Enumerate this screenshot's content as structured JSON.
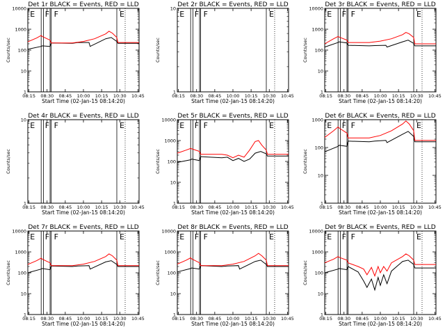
{
  "figure": {
    "background": "#ffffff",
    "axis_color": "#000000"
  },
  "chart_data": [
    {
      "type": "line",
      "title": "Det 1r  BLACK = Events, RED = LLD",
      "xlabel": "Start Time (02-Jan-15 08:14:20)",
      "ylabel": "Counts/sec",
      "x_ticks": [
        "08:15",
        "08:30",
        "08:45",
        "10:00",
        "10:15",
        "10:30",
        "10:45"
      ],
      "y_ticks": [
        "1",
        "10",
        "100",
        "1000",
        "10000"
      ],
      "ylim": [
        1,
        10000
      ],
      "log_y": true,
      "flags": [
        "E",
        "F",
        "F",
        "E"
      ],
      "series": [
        {
          "color": "#000000",
          "x": [
            0,
            0.12,
            0.13,
            0.2,
            0.21,
            0.4,
            0.45,
            0.55,
            0.56,
            0.7,
            0.75,
            0.8,
            0.81,
            1
          ],
          "y": [
            110,
            150,
            160,
            150,
            220,
            210,
            230,
            230,
            150,
            350,
            400,
            260,
            210,
            210
          ]
        },
        {
          "color": "#ff0000",
          "x": [
            0,
            0.08,
            0.12,
            0.13,
            0.2,
            0.21,
            0.4,
            0.5,
            0.6,
            0.7,
            0.73,
            0.76,
            0.8,
            0.81,
            1
          ],
          "y": [
            250,
            380,
            500,
            450,
            300,
            220,
            220,
            260,
            350,
            600,
            800,
            650,
            400,
            230,
            230
          ]
        }
      ]
    },
    {
      "type": "line",
      "title": "Det 2r  BLACK = Events, RED = LLD",
      "xlabel": "Start Time (02-Jan-15 08:14:20)",
      "ylabel": "Counts/sec",
      "x_ticks": [
        "08:15",
        "08:30",
        "08:45",
        "10:00",
        "10:15",
        "10:30",
        "10:45"
      ],
      "y_ticks": [
        "1",
        "10"
      ],
      "ylim": [
        1,
        10
      ],
      "log_y": true,
      "flags": [
        "E",
        "F",
        "F",
        "E"
      ],
      "series": []
    },
    {
      "type": "line",
      "title": "Det 3r  BLACK = Events, RED = LLD",
      "xlabel": "Start Time (02-Jan-15 08:14:20)",
      "ylabel": "Counts/sec",
      "x_ticks": [
        "08:15",
        "08:30",
        "08:45",
        "10:00",
        "10:15",
        "10:30",
        "10:45"
      ],
      "y_ticks": [
        "1",
        "10",
        "100",
        "1000",
        "10000"
      ],
      "ylim": [
        1,
        10000
      ],
      "log_y": true,
      "flags": [
        "E",
        "F",
        "F",
        "E"
      ],
      "series": [
        {
          "color": "#000000",
          "x": [
            0,
            0.12,
            0.13,
            0.2,
            0.21,
            0.4,
            0.45,
            0.55,
            0.56,
            0.7,
            0.75,
            0.8,
            0.81,
            1
          ],
          "y": [
            140,
            230,
            250,
            220,
            170,
            160,
            165,
            170,
            140,
            250,
            300,
            210,
            160,
            160
          ]
        },
        {
          "color": "#ff0000",
          "x": [
            0,
            0.08,
            0.12,
            0.13,
            0.2,
            0.21,
            0.4,
            0.5,
            0.6,
            0.7,
            0.73,
            0.76,
            0.8,
            0.81,
            1
          ],
          "y": [
            200,
            350,
            450,
            420,
            300,
            230,
            230,
            270,
            350,
            550,
            700,
            600,
            400,
            200,
            200
          ]
        }
      ]
    },
    {
      "type": "line",
      "title": "Det 4r  BLACK = Events, RED = LLD",
      "xlabel": "Start Time (02-Jan-15 08:14:20)",
      "ylabel": "Counts/sec",
      "x_ticks": [
        "08:15",
        "08:30",
        "08:45",
        "10:00",
        "10:15",
        "10:30",
        "10:45"
      ],
      "y_ticks": [
        "1",
        "10"
      ],
      "ylim": [
        1,
        10
      ],
      "log_y": true,
      "flags": [
        "E",
        "F",
        "F",
        "E"
      ],
      "series": []
    },
    {
      "type": "line",
      "title": "Det 5r  BLACK = Events, RED = LLD",
      "xlabel": "Start Time (02-Jan-15 08:14:20)",
      "ylabel": "Counts/sec",
      "x_ticks": [
        "08:15",
        "08:30",
        "08:45",
        "10:00",
        "10:15",
        "10:30",
        "10:45"
      ],
      "y_ticks": [
        "1",
        "10",
        "100",
        "1000",
        "10000"
      ],
      "ylim": [
        1,
        10000
      ],
      "log_y": true,
      "flags": [
        "E",
        "F",
        "F",
        "E"
      ],
      "series": [
        {
          "color": "#000000",
          "x": [
            0,
            0.12,
            0.13,
            0.2,
            0.21,
            0.4,
            0.45,
            0.5,
            0.55,
            0.6,
            0.65,
            0.7,
            0.75,
            0.8,
            0.81,
            1
          ],
          "y": [
            90,
            120,
            130,
            110,
            170,
            150,
            160,
            110,
            140,
            100,
            130,
            250,
            300,
            230,
            180,
            180
          ]
        },
        {
          "color": "#ff0000",
          "x": [
            0,
            0.08,
            0.12,
            0.13,
            0.2,
            0.21,
            0.4,
            0.45,
            0.5,
            0.55,
            0.6,
            0.65,
            0.7,
            0.73,
            0.76,
            0.8,
            0.81,
            1
          ],
          "y": [
            250,
            350,
            420,
            400,
            300,
            220,
            220,
            200,
            150,
            200,
            160,
            350,
            900,
            1000,
            600,
            350,
            220,
            220
          ]
        }
      ]
    },
    {
      "type": "line",
      "title": "Det 6r  BLACK = Events, RED = LLD",
      "xlabel": "Start Time (02-Jan-15 08:14:20)",
      "ylabel": "Counts/sec",
      "x_ticks": [
        "08:15",
        "08:30",
        "08:45",
        "10:00",
        "10:15",
        "10:30",
        "10:45"
      ],
      "y_ticks": [
        "1",
        "10",
        "100",
        "1000"
      ],
      "ylim": [
        1,
        1000
      ],
      "log_y": true,
      "flags": [
        "E",
        "F",
        "F",
        "E"
      ],
      "series": [
        {
          "color": "#000000",
          "x": [
            0,
            0.12,
            0.13,
            0.2,
            0.21,
            0.4,
            0.45,
            0.55,
            0.56,
            0.7,
            0.75,
            0.8,
            0.81,
            1
          ],
          "y": [
            70,
            110,
            120,
            110,
            170,
            160,
            170,
            180,
            150,
            300,
            380,
            250,
            160,
            160
          ]
        },
        {
          "color": "#ff0000",
          "x": [
            0,
            0.08,
            0.12,
            0.13,
            0.2,
            0.21,
            0.4,
            0.5,
            0.6,
            0.7,
            0.73,
            0.76,
            0.8,
            0.81,
            1
          ],
          "y": [
            230,
            400,
            550,
            500,
            330,
            220,
            220,
            270,
            400,
            700,
            900,
            700,
            400,
            180,
            180
          ]
        }
      ]
    },
    {
      "type": "line",
      "title": "Det 7r  BLACK = Events, RED = LLD",
      "xlabel": "Start Time (02-Jan-15 08:14:20)",
      "ylabel": "Counts/sec",
      "x_ticks": [
        "08:15",
        "08:30",
        "08:45",
        "10:00",
        "10:15",
        "10:30",
        "10:45"
      ],
      "y_ticks": [
        "1",
        "10",
        "100",
        "1000",
        "10000"
      ],
      "ylim": [
        1,
        10000
      ],
      "log_y": true,
      "flags": [
        "E",
        "F",
        "F",
        "E"
      ],
      "series": [
        {
          "color": "#000000",
          "x": [
            0,
            0.12,
            0.13,
            0.2,
            0.21,
            0.4,
            0.45,
            0.55,
            0.56,
            0.7,
            0.75,
            0.8,
            0.81,
            1
          ],
          "y": [
            100,
            150,
            160,
            140,
            210,
            200,
            210,
            220,
            150,
            330,
            380,
            250,
            200,
            200
          ]
        },
        {
          "color": "#ff0000",
          "x": [
            0,
            0.08,
            0.12,
            0.13,
            0.2,
            0.21,
            0.4,
            0.5,
            0.6,
            0.7,
            0.73,
            0.76,
            0.8,
            0.81,
            1
          ],
          "y": [
            250,
            380,
            500,
            450,
            300,
            220,
            220,
            260,
            350,
            600,
            800,
            650,
            400,
            220,
            220
          ]
        }
      ]
    },
    {
      "type": "line",
      "title": "Det 8r  BLACK = Events, RED = LLD",
      "xlabel": "Start Time (02-Jan-15 08:14:20)",
      "ylabel": "Counts/sec",
      "x_ticks": [
        "08:15",
        "08:30",
        "08:45",
        "10:00",
        "10:15",
        "10:30",
        "10:45"
      ],
      "y_ticks": [
        "1",
        "10",
        "100",
        "1000",
        "10000"
      ],
      "ylim": [
        1,
        10000
      ],
      "log_y": true,
      "flags": [
        "E",
        "F",
        "F",
        "E"
      ],
      "series": [
        {
          "color": "#000000",
          "x": [
            0,
            0.12,
            0.13,
            0.2,
            0.21,
            0.4,
            0.45,
            0.55,
            0.56,
            0.7,
            0.75,
            0.8,
            0.81,
            1
          ],
          "y": [
            110,
            160,
            170,
            150,
            220,
            200,
            210,
            220,
            150,
            350,
            400,
            250,
            200,
            200
          ]
        },
        {
          "color": "#ff0000",
          "x": [
            0,
            0.08,
            0.12,
            0.13,
            0.2,
            0.21,
            0.4,
            0.5,
            0.6,
            0.7,
            0.73,
            0.76,
            0.8,
            0.81,
            1
          ],
          "y": [
            260,
            400,
            520,
            460,
            300,
            220,
            220,
            260,
            350,
            650,
            850,
            650,
            400,
            220,
            220
          ]
        }
      ]
    },
    {
      "type": "line",
      "title": "Det 9r  BLACK = Events, RED = LLD",
      "xlabel": "Start Time (02-Jan-15 08:14:20)",
      "ylabel": "Counts/sec",
      "x_ticks": [
        "08:15",
        "08:30",
        "08:45",
        "10:00",
        "10:15",
        "10:30",
        "10:45"
      ],
      "y_ticks": [
        "1",
        "10",
        "100",
        "1000",
        "10000"
      ],
      "ylim": [
        1,
        10000
      ],
      "log_y": true,
      "flags": [
        "E",
        "F",
        "F",
        "E"
      ],
      "series": [
        {
          "color": "#000000",
          "x": [
            0,
            0.12,
            0.13,
            0.2,
            0.21,
            0.3,
            0.35,
            0.38,
            0.42,
            0.45,
            0.48,
            0.5,
            0.53,
            0.56,
            0.6,
            0.7,
            0.75,
            0.8,
            0.81,
            1
          ],
          "y": [
            100,
            150,
            160,
            140,
            200,
            110,
            40,
            20,
            50,
            15,
            60,
            25,
            80,
            30,
            120,
            350,
            400,
            250,
            170,
            170
          ]
        },
        {
          "color": "#ff0000",
          "x": [
            0,
            0.08,
            0.12,
            0.13,
            0.2,
            0.21,
            0.3,
            0.35,
            0.38,
            0.42,
            0.45,
            0.48,
            0.5,
            0.53,
            0.56,
            0.6,
            0.7,
            0.73,
            0.76,
            0.8,
            0.81,
            1
          ],
          "y": [
            300,
            450,
            600,
            550,
            400,
            300,
            200,
            150,
            80,
            180,
            70,
            200,
            100,
            200,
            120,
            300,
            600,
            800,
            650,
            400,
            250,
            250
          ]
        }
      ]
    }
  ]
}
